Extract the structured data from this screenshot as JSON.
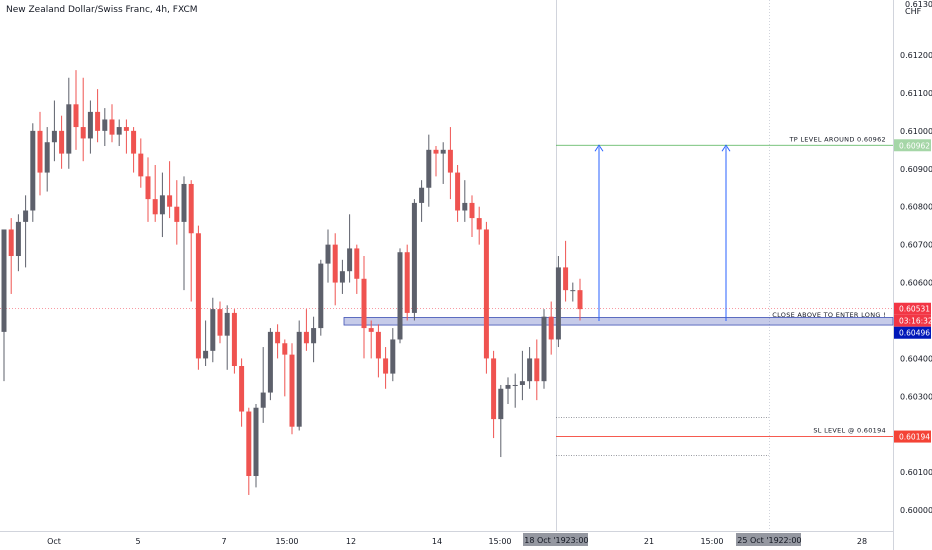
{
  "chart_data": {
    "type": "candlestick",
    "title": "New Zealand Dollar/Swiss Franc, 4h, FXCM",
    "y_unit": "CHF",
    "ylim": [
      0.59945,
      0.61345
    ],
    "y_ticks": [
      "0.61300",
      "0.61200",
      "0.61100",
      "0.61000",
      "0.60900",
      "0.60800",
      "0.60700",
      "0.60600",
      "0.60400",
      "0.60300",
      "0.60100",
      "0.60000"
    ],
    "x_ticks": [
      "Oct",
      "5",
      "7",
      "15:00",
      "12",
      "14",
      "15:00",
      "21",
      "15:00",
      "28"
    ],
    "x_highlight_labels": [
      "18 Oct '19",
      "23:00",
      "25 Oct '19",
      "22:00"
    ],
    "colors": {
      "up": "#5d606b",
      "down": "#ef5350",
      "tp": "#4caf50",
      "sl": "#f44336",
      "entry": "#3f51b5",
      "arrow": "#2962ff",
      "current": "#f23645",
      "bid": "#0018b9"
    },
    "candles": [
      {
        "o": 0.6047,
        "h": 0.6074,
        "l": 0.6034,
        "c": 0.6074
      },
      {
        "o": 0.6074,
        "h": 0.6077,
        "l": 0.6057,
        "c": 0.6067
      },
      {
        "o": 0.6067,
        "h": 0.6078,
        "l": 0.6063,
        "c": 0.6076
      },
      {
        "o": 0.6076,
        "h": 0.6083,
        "l": 0.6064,
        "c": 0.6079
      },
      {
        "o": 0.6079,
        "h": 0.6102,
        "l": 0.6076,
        "c": 0.61
      },
      {
        "o": 0.61,
        "h": 0.6105,
        "l": 0.6083,
        "c": 0.6089
      },
      {
        "o": 0.6089,
        "h": 0.6101,
        "l": 0.6084,
        "c": 0.6097
      },
      {
        "o": 0.6097,
        "h": 0.6108,
        "l": 0.6092,
        "c": 0.61
      },
      {
        "o": 0.61,
        "h": 0.6104,
        "l": 0.609,
        "c": 0.6094
      },
      {
        "o": 0.6094,
        "h": 0.6114,
        "l": 0.609,
        "c": 0.6107
      },
      {
        "o": 0.6107,
        "h": 0.6116,
        "l": 0.6095,
        "c": 0.6101
      },
      {
        "o": 0.6101,
        "h": 0.6114,
        "l": 0.6092,
        "c": 0.6098
      },
      {
        "o": 0.6098,
        "h": 0.6108,
        "l": 0.6094,
        "c": 0.6105
      },
      {
        "o": 0.6105,
        "h": 0.6111,
        "l": 0.6097,
        "c": 0.61
      },
      {
        "o": 0.61,
        "h": 0.6106,
        "l": 0.6096,
        "c": 0.6103
      },
      {
        "o": 0.6103,
        "h": 0.6107,
        "l": 0.6097,
        "c": 0.6099
      },
      {
        "o": 0.6099,
        "h": 0.6103,
        "l": 0.6096,
        "c": 0.6101
      },
      {
        "o": 0.6101,
        "h": 0.6103,
        "l": 0.6094,
        "c": 0.61
      },
      {
        "o": 0.61,
        "h": 0.6101,
        "l": 0.6089,
        "c": 0.6094
      },
      {
        "o": 0.6094,
        "h": 0.6098,
        "l": 0.6085,
        "c": 0.6088
      },
      {
        "o": 0.6088,
        "h": 0.6093,
        "l": 0.6076,
        "c": 0.6082
      },
      {
        "o": 0.6082,
        "h": 0.6091,
        "l": 0.6076,
        "c": 0.6078
      },
      {
        "o": 0.6078,
        "h": 0.6089,
        "l": 0.6072,
        "c": 0.6083
      },
      {
        "o": 0.6083,
        "h": 0.6092,
        "l": 0.6077,
        "c": 0.608
      },
      {
        "o": 0.608,
        "h": 0.6087,
        "l": 0.607,
        "c": 0.6076
      },
      {
        "o": 0.6076,
        "h": 0.6088,
        "l": 0.6058,
        "c": 0.6086
      },
      {
        "o": 0.6086,
        "h": 0.6087,
        "l": 0.6055,
        "c": 0.6073
      },
      {
        "o": 0.6073,
        "h": 0.6075,
        "l": 0.6037,
        "c": 0.604
      },
      {
        "o": 0.604,
        "h": 0.605,
        "l": 0.6038,
        "c": 0.6042
      },
      {
        "o": 0.6042,
        "h": 0.6056,
        "l": 0.6039,
        "c": 0.6053
      },
      {
        "o": 0.6053,
        "h": 0.6055,
        "l": 0.6044,
        "c": 0.6046
      },
      {
        "o": 0.6046,
        "h": 0.6054,
        "l": 0.6037,
        "c": 0.6052
      },
      {
        "o": 0.6052,
        "h": 0.6053,
        "l": 0.6036,
        "c": 0.6038
      },
      {
        "o": 0.6038,
        "h": 0.604,
        "l": 0.6022,
        "c": 0.6026
      },
      {
        "o": 0.6026,
        "h": 0.6027,
        "l": 0.6004,
        "c": 0.6009
      },
      {
        "o": 0.6009,
        "h": 0.6028,
        "l": 0.6006,
        "c": 0.6027
      },
      {
        "o": 0.6027,
        "h": 0.6043,
        "l": 0.6023,
        "c": 0.6031
      },
      {
        "o": 0.6031,
        "h": 0.6048,
        "l": 0.6029,
        "c": 0.6047
      },
      {
        "o": 0.6047,
        "h": 0.6049,
        "l": 0.604,
        "c": 0.6044
      },
      {
        "o": 0.6044,
        "h": 0.6045,
        "l": 0.603,
        "c": 0.6041
      },
      {
        "o": 0.6041,
        "h": 0.6044,
        "l": 0.602,
        "c": 0.6022
      },
      {
        "o": 0.6022,
        "h": 0.605,
        "l": 0.6021,
        "c": 0.6047
      },
      {
        "o": 0.6047,
        "h": 0.6053,
        "l": 0.6042,
        "c": 0.6044
      },
      {
        "o": 0.6044,
        "h": 0.6051,
        "l": 0.6039,
        "c": 0.6048
      },
      {
        "o": 0.6048,
        "h": 0.6066,
        "l": 0.6046,
        "c": 0.6065
      },
      {
        "o": 0.6065,
        "h": 0.6074,
        "l": 0.606,
        "c": 0.607
      },
      {
        "o": 0.607,
        "h": 0.6073,
        "l": 0.6054,
        "c": 0.606
      },
      {
        "o": 0.606,
        "h": 0.6066,
        "l": 0.6057,
        "c": 0.6063
      },
      {
        "o": 0.6063,
        "h": 0.6078,
        "l": 0.606,
        "c": 0.6069
      },
      {
        "o": 0.6069,
        "h": 0.607,
        "l": 0.6057,
        "c": 0.6061
      },
      {
        "o": 0.6061,
        "h": 0.6067,
        "l": 0.604,
        "c": 0.6048
      },
      {
        "o": 0.6048,
        "h": 0.605,
        "l": 0.604,
        "c": 0.6047
      },
      {
        "o": 0.6047,
        "h": 0.6049,
        "l": 0.6035,
        "c": 0.604
      },
      {
        "o": 0.604,
        "h": 0.6043,
        "l": 0.6032,
        "c": 0.6036
      },
      {
        "o": 0.6036,
        "h": 0.6048,
        "l": 0.6034,
        "c": 0.6045
      },
      {
        "o": 0.6045,
        "h": 0.6069,
        "l": 0.6044,
        "c": 0.6068
      },
      {
        "o": 0.6068,
        "h": 0.607,
        "l": 0.605,
        "c": 0.6052
      },
      {
        "o": 0.6052,
        "h": 0.6082,
        "l": 0.605,
        "c": 0.6081
      },
      {
        "o": 0.6081,
        "h": 0.6087,
        "l": 0.6076,
        "c": 0.6085
      },
      {
        "o": 0.6085,
        "h": 0.6099,
        "l": 0.608,
        "c": 0.6095
      },
      {
        "o": 0.6095,
        "h": 0.6096,
        "l": 0.6088,
        "c": 0.6094
      },
      {
        "o": 0.6094,
        "h": 0.6097,
        "l": 0.6086,
        "c": 0.6095
      },
      {
        "o": 0.6095,
        "h": 0.6101,
        "l": 0.6082,
        "c": 0.6089
      },
      {
        "o": 0.6089,
        "h": 0.6091,
        "l": 0.6076,
        "c": 0.6079
      },
      {
        "o": 0.6079,
        "h": 0.6087,
        "l": 0.6076,
        "c": 0.6081
      },
      {
        "o": 0.6081,
        "h": 0.6083,
        "l": 0.6072,
        "c": 0.6077
      },
      {
        "o": 0.6077,
        "h": 0.608,
        "l": 0.607,
        "c": 0.6074
      },
      {
        "o": 0.6074,
        "h": 0.6076,
        "l": 0.6036,
        "c": 0.604
      },
      {
        "o": 0.604,
        "h": 0.6042,
        "l": 0.6019,
        "c": 0.6024
      },
      {
        "o": 0.6024,
        "h": 0.6033,
        "l": 0.6014,
        "c": 0.6032
      },
      {
        "o": 0.6032,
        "h": 0.6035,
        "l": 0.6028,
        "c": 0.6033
      },
      {
        "o": 0.6033,
        "h": 0.6036,
        "l": 0.6027,
        "c": 0.6033
      },
      {
        "o": 0.6033,
        "h": 0.6042,
        "l": 0.6029,
        "c": 0.6034
      },
      {
        "o": 0.6034,
        "h": 0.6043,
        "l": 0.6032,
        "c": 0.604
      },
      {
        "o": 0.604,
        "h": 0.6045,
        "l": 0.6029,
        "c": 0.6034
      },
      {
        "o": 0.6034,
        "h": 0.6053,
        "l": 0.6032,
        "c": 0.6051
      },
      {
        "o": 0.6051,
        "h": 0.6055,
        "l": 0.6041,
        "c": 0.6045
      },
      {
        "o": 0.6045,
        "h": 0.6067,
        "l": 0.6043,
        "c": 0.6064
      },
      {
        "o": 0.6064,
        "h": 0.6071,
        "l": 0.6055,
        "c": 0.6058
      },
      {
        "o": 0.6058,
        "h": 0.606,
        "l": 0.6055,
        "c": 0.6058
      },
      {
        "o": 0.6058,
        "h": 0.6061,
        "l": 0.605,
        "c": 0.6053
      }
    ],
    "series": [
      {
        "name": "TP LEVEL AROUND 0.60962",
        "y": 0.60962
      },
      {
        "name": "CLOSE ABOVE TO ENTER LONG !",
        "y": 0.60496
      },
      {
        "name": "SL LEVEL @ 0.60194",
        "y": 0.60194
      }
    ],
    "price_labels": {
      "tp": "0.60962",
      "current": "0.60531",
      "countdown": "03:16:32",
      "bid": "0.60496",
      "sl": "0.60194"
    },
    "current_price": 0.60531,
    "entry_zone": [
      0.60488,
      0.60508
    ],
    "range_box": [
      0.60144,
      0.60244
    ],
    "annotations": {
      "tp": "TP LEVEL AROUND 0.60962",
      "entry": "CLOSE ABOVE TO ENTER LONG !",
      "sl": "SL LEVEL @ 0.60194"
    }
  }
}
